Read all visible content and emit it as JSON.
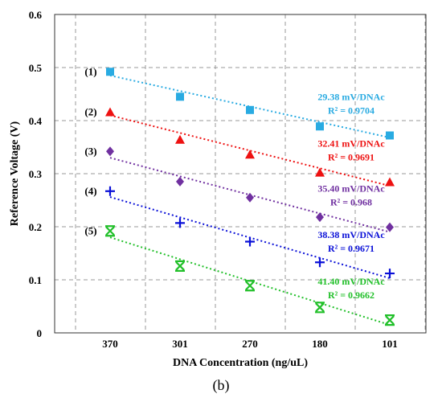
{
  "chart_data": {
    "type": "scatter",
    "categories": [
      "370",
      "301",
      "270",
      "180",
      "101"
    ],
    "xlabel": "DNA Concentration (ng/uL)",
    "ylabel": "Reference Voltage (V)",
    "ylim": [
      0,
      0.6
    ],
    "yticks": [
      "0",
      "0.1",
      "0.2",
      "0.3",
      "0.4",
      "0.5",
      "0.6"
    ],
    "grid": "dashed",
    "caption": "(b)",
    "series": [
      {
        "label": "(1)",
        "marker": "square",
        "color": "#29ABE2",
        "values": [
          0.492,
          0.445,
          0.42,
          0.389,
          0.372
        ],
        "fit": [
          0.485,
          0.368
        ],
        "slope_text": "29.38 mV/DNAc",
        "r2_text": "R² = 0.9704"
      },
      {
        "label": "(2)",
        "marker": "triangle",
        "color": "#EE1111",
        "values": [
          0.416,
          0.364,
          0.336,
          0.302,
          0.284
        ],
        "fit": [
          0.41,
          0.277
        ],
        "slope_text": "32.41 mV/DNAc",
        "r2_text": "R² = 0.9691"
      },
      {
        "label": "(3)",
        "marker": "diamond",
        "color": "#7030A0",
        "values": [
          0.342,
          0.285,
          0.255,
          0.218,
          0.199
        ],
        "fit": [
          0.33,
          0.19
        ],
        "slope_text": "35.40 mV/DNAc",
        "r2_text": "R² = 0.968"
      },
      {
        "label": "(4)",
        "marker": "plus",
        "color": "#0A10D8",
        "values": [
          0.267,
          0.207,
          0.172,
          0.133,
          0.112
        ],
        "fit": [
          0.256,
          0.103
        ],
        "slope_text": "38.38 mV/DNAc",
        "r2_text": "R² = 0.9671"
      },
      {
        "label": "(5)",
        "marker": "xstar",
        "color": "#22C02A",
        "values": [
          0.192,
          0.126,
          0.089,
          0.048,
          0.024
        ],
        "fit": [
          0.18,
          0.015
        ],
        "slope_text": "41.40 mV/DNAc",
        "r2_text": "R² = 0.9662"
      }
    ]
  }
}
